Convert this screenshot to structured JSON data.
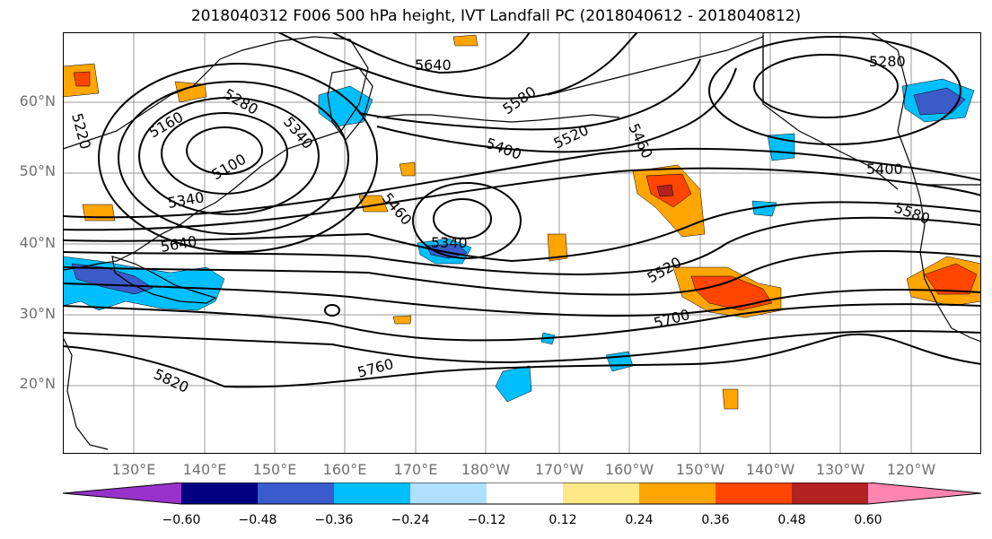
{
  "title": "2018040312 F006 500 hPa height, IVT Landfall PC (2018040612 - 2018040812)",
  "map": {
    "lat_labels": [
      "60°N",
      "50°N",
      "40°N",
      "30°N",
      "20°N"
    ],
    "lon_labels": [
      "130°E",
      "140°E",
      "150°E",
      "160°E",
      "170°E",
      "180°W",
      "170°W",
      "160°W",
      "150°W",
      "140°W",
      "130°W",
      "120°W"
    ],
    "contour_labels": [
      "5640",
      "5580",
      "5520",
      "5460",
      "5400",
      "5340",
      "5280",
      "5160",
      "5220",
      "5100",
      "5340",
      "5640",
      "5460",
      "5340",
      "5400",
      "5520",
      "5700",
      "5760",
      "5820",
      "5280",
      "5400",
      "5580"
    ],
    "contour_color": "#000000",
    "fill_colors": {
      "neg_strong": "#3b5bc9",
      "neg_mid": "#00bfff",
      "pos_low": "#ffa500",
      "pos_mid": "#ff4500",
      "pos_high": "#b22222"
    }
  },
  "colorbar": {
    "colors": [
      "#9932cc",
      "#000080",
      "#3a5bcc",
      "#00bfff",
      "#b0e0ff",
      "#ffffff",
      "#ffe987",
      "#ffa500",
      "#ff4500",
      "#b22222",
      "#ff85b0"
    ],
    "tick_labels": [
      "−0.60",
      "−0.48",
      "−0.36",
      "−0.24",
      "−0.12",
      "0.12",
      "0.24",
      "0.36",
      "0.48",
      "0.60"
    ]
  }
}
